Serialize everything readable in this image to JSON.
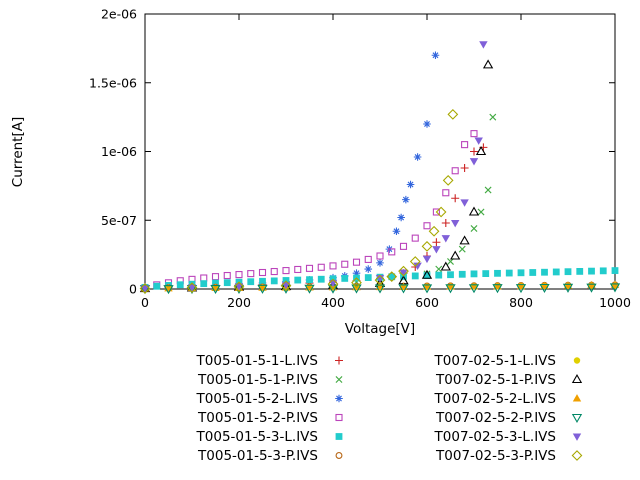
{
  "chart_data": {
    "type": "scatter",
    "title": "",
    "xlabel": "Voltage[V]",
    "ylabel": "Current[A]",
    "xlim": [
      0,
      1000
    ],
    "ylim": [
      0,
      2e-06
    ],
    "xticks": [
      0,
      200,
      400,
      600,
      800,
      1000
    ],
    "xtick_labels": [
      "0",
      "200",
      "400",
      "600",
      "800",
      "1000"
    ],
    "yticks": [
      0,
      5e-07,
      1e-06,
      1.5e-06,
      2e-06
    ],
    "ytick_labels": [
      "0",
      "5e-07",
      "1e-06",
      "1.5e-06",
      "2e-06"
    ],
    "grid": false,
    "legend_position": "below-two-columns",
    "series": [
      {
        "name": "T005-01-5-1-L.IVS",
        "marker": "plus",
        "color": "#cc2222",
        "points": [
          [
            0,
            5e-09
          ],
          [
            50,
            1.2e-08
          ],
          [
            100,
            1.8e-08
          ],
          [
            150,
            2.3e-08
          ],
          [
            200,
            2.8e-08
          ],
          [
            250,
            3.2e-08
          ],
          [
            300,
            3.7e-08
          ],
          [
            350,
            4.3e-08
          ],
          [
            400,
            5e-08
          ],
          [
            450,
            6e-08
          ],
          [
            500,
            7.5e-08
          ],
          [
            525,
            9e-08
          ],
          [
            550,
            1.15e-07
          ],
          [
            575,
            1.6e-07
          ],
          [
            600,
            2.4e-07
          ],
          [
            620,
            3.4e-07
          ],
          [
            640,
            4.8e-07
          ],
          [
            660,
            6.6e-07
          ],
          [
            680,
            8.8e-07
          ],
          [
            700,
            1e-06
          ],
          [
            720,
            1.03e-06
          ]
        ]
      },
      {
        "name": "T005-01-5-1-P.IVS",
        "marker": "cross",
        "color": "#44aa44",
        "points": [
          [
            0,
            4e-09
          ],
          [
            50,
            9e-09
          ],
          [
            100,
            1.4e-08
          ],
          [
            150,
            1.9e-08
          ],
          [
            200,
            2.3e-08
          ],
          [
            250,
            2.7e-08
          ],
          [
            300,
            3.1e-08
          ],
          [
            350,
            3.6e-08
          ],
          [
            400,
            4.2e-08
          ],
          [
            450,
            5e-08
          ],
          [
            500,
            6e-08
          ],
          [
            550,
            7.8e-08
          ],
          [
            600,
            1.1e-07
          ],
          [
            625,
            1.45e-07
          ],
          [
            650,
            2e-07
          ],
          [
            675,
            2.9e-07
          ],
          [
            700,
            4.4e-07
          ],
          [
            715,
            5.6e-07
          ],
          [
            730,
            7.2e-07
          ],
          [
            740,
            1.25e-06
          ]
        ]
      },
      {
        "name": "T005-01-5-2-L.IVS",
        "marker": "asterisk",
        "color": "#3366dd",
        "points": [
          [
            0,
            6e-09
          ],
          [
            50,
            1.4e-08
          ],
          [
            100,
            2.2e-08
          ],
          [
            150,
            2.9e-08
          ],
          [
            200,
            3.6e-08
          ],
          [
            250,
            4.4e-08
          ],
          [
            300,
            5.4e-08
          ],
          [
            350,
            6.6e-08
          ],
          [
            400,
            8.2e-08
          ],
          [
            425,
            9.5e-08
          ],
          [
            450,
            1.15e-07
          ],
          [
            475,
            1.45e-07
          ],
          [
            500,
            1.9e-07
          ],
          [
            520,
            2.9e-07
          ],
          [
            535,
            4.2e-07
          ],
          [
            545,
            5.2e-07
          ],
          [
            555,
            6.5e-07
          ],
          [
            565,
            7.6e-07
          ],
          [
            580,
            9.6e-07
          ],
          [
            600,
            1.2e-06
          ],
          [
            618,
            1.7e-06
          ]
        ]
      },
      {
        "name": "T005-01-5-2-P.IVS",
        "marker": "square-open",
        "color": "#bb44bb",
        "points": [
          [
            0,
            1e-08
          ],
          [
            25,
            3e-08
          ],
          [
            50,
            4.5e-08
          ],
          [
            75,
            6e-08
          ],
          [
            100,
            7e-08
          ],
          [
            125,
            8e-08
          ],
          [
            150,
            9e-08
          ],
          [
            175,
            9.8e-08
          ],
          [
            200,
            1.05e-07
          ],
          [
            225,
            1.12e-07
          ],
          [
            250,
            1.2e-07
          ],
          [
            275,
            1.27e-07
          ],
          [
            300,
            1.34e-07
          ],
          [
            325,
            1.42e-07
          ],
          [
            350,
            1.5e-07
          ],
          [
            375,
            1.58e-07
          ],
          [
            400,
            1.68e-07
          ],
          [
            425,
            1.8e-07
          ],
          [
            450,
            1.95e-07
          ],
          [
            475,
            2.15e-07
          ],
          [
            500,
            2.4e-07
          ],
          [
            525,
            2.7e-07
          ],
          [
            550,
            3.1e-07
          ],
          [
            575,
            3.7e-07
          ],
          [
            600,
            4.6e-07
          ],
          [
            620,
            5.6e-07
          ],
          [
            640,
            7e-07
          ],
          [
            660,
            8.6e-07
          ],
          [
            680,
            1.05e-06
          ],
          [
            700,
            1.13e-06
          ]
        ]
      },
      {
        "name": "T005-01-5-3-L.IVS",
        "marker": "square-filled",
        "color": "#22cccc",
        "points": [
          [
            0,
            1.2e-08
          ],
          [
            25,
            2e-08
          ],
          [
            50,
            2.6e-08
          ],
          [
            75,
            3.1e-08
          ],
          [
            100,
            3.5e-08
          ],
          [
            125,
            3.9e-08
          ],
          [
            150,
            4.3e-08
          ],
          [
            175,
            4.6e-08
          ],
          [
            200,
            5e-08
          ],
          [
            225,
            5.3e-08
          ],
          [
            250,
            5.6e-08
          ],
          [
            275,
            5.9e-08
          ],
          [
            300,
            6.2e-08
          ],
          [
            325,
            6.5e-08
          ],
          [
            350,
            6.8e-08
          ],
          [
            375,
            7.1e-08
          ],
          [
            400,
            7.4e-08
          ],
          [
            425,
            7.7e-08
          ],
          [
            450,
            8e-08
          ],
          [
            475,
            8.3e-08
          ],
          [
            500,
            8.6e-08
          ],
          [
            525,
            8.9e-08
          ],
          [
            550,
            9.2e-08
          ],
          [
            575,
            9.5e-08
          ],
          [
            600,
            9.8e-08
          ],
          [
            625,
            1.01e-07
          ],
          [
            650,
            1.04e-07
          ],
          [
            675,
            1.07e-07
          ],
          [
            700,
            1.1e-07
          ],
          [
            725,
            1.12e-07
          ],
          [
            750,
            1.14e-07
          ],
          [
            775,
            1.16e-07
          ],
          [
            800,
            1.18e-07
          ],
          [
            825,
            1.2e-07
          ],
          [
            850,
            1.22e-07
          ],
          [
            875,
            1.24e-07
          ],
          [
            900,
            1.26e-07
          ],
          [
            925,
            1.28e-07
          ],
          [
            950,
            1.3e-07
          ],
          [
            975,
            1.32e-07
          ],
          [
            1000,
            1.34e-07
          ]
        ]
      },
      {
        "name": "T005-01-5-3-P.IVS",
        "marker": "circle-open",
        "color": "#b86818",
        "points": [
          [
            0,
            8e-09
          ],
          [
            50,
            1e-08
          ],
          [
            100,
            1.2e-08
          ],
          [
            150,
            1.3e-08
          ],
          [
            200,
            1.4e-08
          ],
          [
            250,
            1.5e-08
          ],
          [
            300,
            1.6e-08
          ],
          [
            350,
            1.7e-08
          ],
          [
            400,
            1.8e-08
          ],
          [
            450,
            1.9e-08
          ],
          [
            500,
            2e-08
          ],
          [
            550,
            2.1e-08
          ],
          [
            600,
            2.2e-08
          ],
          [
            650,
            2.3e-08
          ],
          [
            700,
            2.4e-08
          ],
          [
            750,
            2.5e-08
          ],
          [
            800,
            2.6e-08
          ],
          [
            850,
            2.7e-08
          ],
          [
            900,
            2.8e-08
          ],
          [
            950,
            2.9e-08
          ],
          [
            1000,
            3e-08
          ]
        ]
      },
      {
        "name": "T007-02-5-1-L.IVS",
        "marker": "circle-filled",
        "color": "#e0d000",
        "points": [
          [
            0,
            5e-09
          ],
          [
            50,
            6e-09
          ],
          [
            100,
            7e-09
          ],
          [
            150,
            8e-09
          ],
          [
            200,
            9e-09
          ],
          [
            250,
            1e-08
          ],
          [
            300,
            1.1e-08
          ],
          [
            350,
            1.2e-08
          ],
          [
            400,
            1.3e-08
          ],
          [
            450,
            1.4e-08
          ],
          [
            500,
            1.5e-08
          ],
          [
            550,
            1.6e-08
          ],
          [
            600,
            1.7e-08
          ],
          [
            650,
            1.8e-08
          ],
          [
            700,
            1.9e-08
          ],
          [
            750,
            2e-08
          ],
          [
            800,
            2.1e-08
          ],
          [
            850,
            2.2e-08
          ],
          [
            900,
            2.3e-08
          ],
          [
            950,
            2.4e-08
          ],
          [
            1000,
            2.5e-08
          ]
        ]
      },
      {
        "name": "T007-02-5-1-P.IVS",
        "marker": "triangle-up-open",
        "color": "#000000",
        "points": [
          [
            0,
            3e-09
          ],
          [
            100,
            8e-09
          ],
          [
            200,
            1.3e-08
          ],
          [
            300,
            1.8e-08
          ],
          [
            400,
            2.5e-08
          ],
          [
            500,
            4e-08
          ],
          [
            550,
            6e-08
          ],
          [
            600,
            1e-07
          ],
          [
            640,
            1.6e-07
          ],
          [
            660,
            2.4e-07
          ],
          [
            680,
            3.5e-07
          ],
          [
            700,
            5.6e-07
          ],
          [
            715,
            1e-06
          ],
          [
            730,
            1.63e-06
          ]
        ]
      },
      {
        "name": "T007-02-5-2-L.IVS",
        "marker": "triangle-up-filled",
        "color": "#f0a000",
        "points": [
          [
            0,
            4e-09
          ],
          [
            50,
            5e-09
          ],
          [
            100,
            6e-09
          ],
          [
            150,
            7e-09
          ],
          [
            200,
            8e-09
          ],
          [
            250,
            9e-09
          ],
          [
            300,
            1e-08
          ],
          [
            350,
            1.1e-08
          ],
          [
            400,
            1.2e-08
          ],
          [
            450,
            1.3e-08
          ],
          [
            500,
            1.4e-08
          ],
          [
            550,
            1.5e-08
          ],
          [
            600,
            1.6e-08
          ],
          [
            650,
            1.7e-08
          ],
          [
            700,
            1.8e-08
          ],
          [
            750,
            1.9e-08
          ],
          [
            800,
            2e-08
          ],
          [
            850,
            2.2e-08
          ],
          [
            900,
            2.4e-08
          ],
          [
            950,
            2.7e-08
          ],
          [
            1000,
            3e-08
          ]
        ]
      },
      {
        "name": "T007-02-5-2-P.IVS",
        "marker": "triangle-down-open",
        "color": "#008866",
        "points": [
          [
            0,
            2e-09
          ],
          [
            50,
            2.5e-09
          ],
          [
            100,
            3e-09
          ],
          [
            150,
            3.5e-09
          ],
          [
            200,
            4e-09
          ],
          [
            250,
            4.5e-09
          ],
          [
            300,
            5e-09
          ],
          [
            350,
            5.5e-09
          ],
          [
            400,
            6e-09
          ],
          [
            450,
            6.5e-09
          ],
          [
            500,
            7e-09
          ],
          [
            550,
            7.5e-09
          ],
          [
            600,
            8e-09
          ],
          [
            650,
            8.5e-09
          ],
          [
            700,
            9e-09
          ],
          [
            750,
            9.5e-09
          ],
          [
            800,
            1e-08
          ],
          [
            850,
            1.1e-08
          ],
          [
            900,
            1.2e-08
          ],
          [
            950,
            1.3e-08
          ],
          [
            1000,
            1.5e-08
          ]
        ]
      },
      {
        "name": "T007-02-5-3-L.IVS",
        "marker": "triangle-down-filled",
        "color": "#8060d8",
        "points": [
          [
            0,
            5e-09
          ],
          [
            100,
            1.2e-08
          ],
          [
            200,
            2e-08
          ],
          [
            300,
            3e-08
          ],
          [
            400,
            4.5e-08
          ],
          [
            500,
            8e-08
          ],
          [
            550,
            1.2e-07
          ],
          [
            580,
            1.7e-07
          ],
          [
            600,
            2.2e-07
          ],
          [
            620,
            2.9e-07
          ],
          [
            640,
            3.7e-07
          ],
          [
            660,
            4.8e-07
          ],
          [
            680,
            6.3e-07
          ],
          [
            700,
            9.3e-07
          ],
          [
            710,
            1.08e-06
          ],
          [
            720,
            1.78e-06
          ]
        ]
      },
      {
        "name": "T007-02-5-3-P.IVS",
        "marker": "diamond-open",
        "color": "#a8a800",
        "points": [
          [
            0,
            4e-09
          ],
          [
            100,
            1e-08
          ],
          [
            200,
            1.6e-08
          ],
          [
            300,
            2.4e-08
          ],
          [
            400,
            3.6e-08
          ],
          [
            450,
            4.6e-08
          ],
          [
            500,
            6.5e-08
          ],
          [
            525,
            9e-08
          ],
          [
            550,
            1.3e-07
          ],
          [
            575,
            2e-07
          ],
          [
            600,
            3.1e-07
          ],
          [
            615,
            4.2e-07
          ],
          [
            630,
            5.6e-07
          ],
          [
            645,
            7.9e-07
          ],
          [
            655,
            1.27e-06
          ]
        ]
      }
    ]
  }
}
